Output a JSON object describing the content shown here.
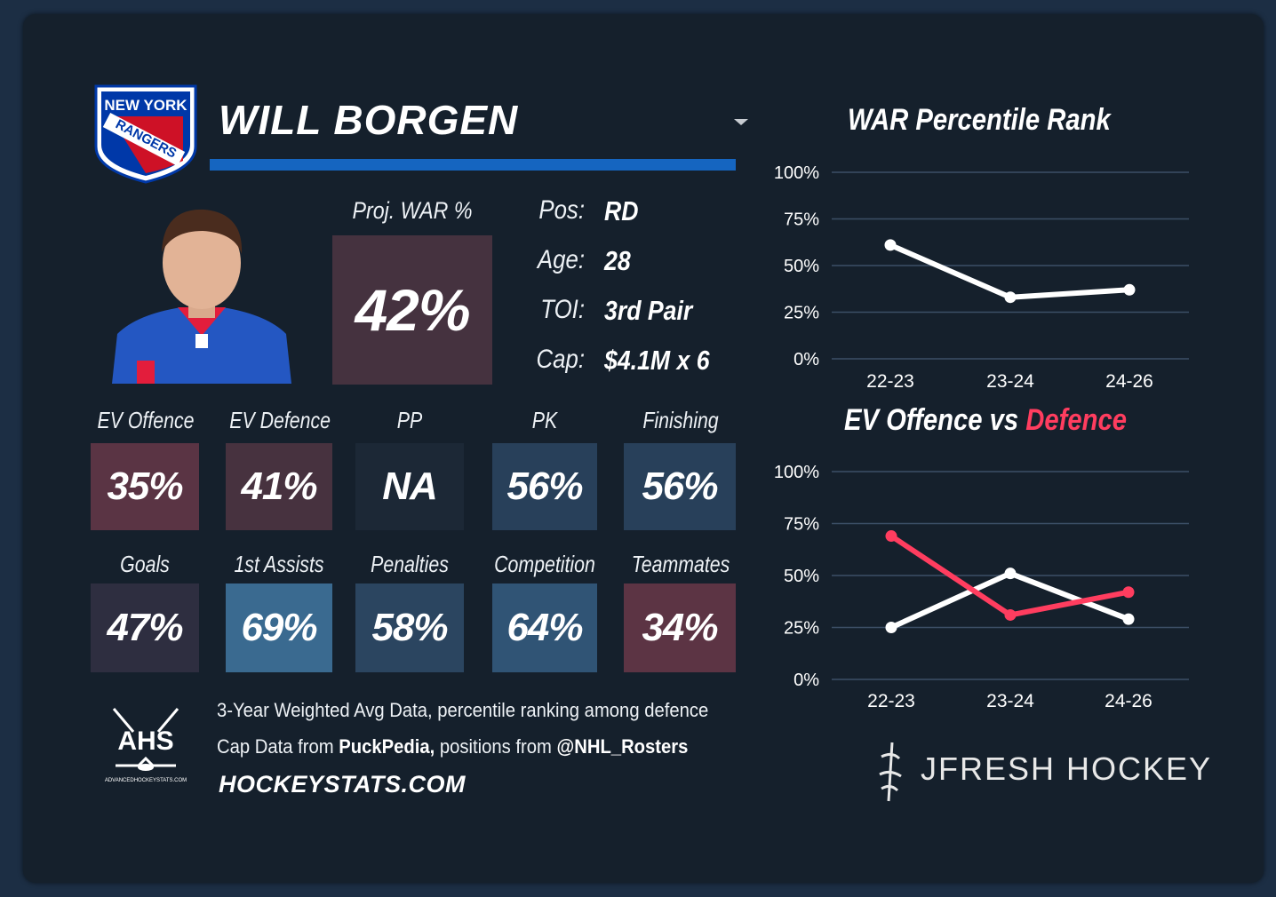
{
  "team": {
    "logo_line1": "NEW YORK",
    "logo_line2": "RANGERS"
  },
  "player": {
    "name": "WILL BORGEN"
  },
  "projected": {
    "label": "Proj. WAR %",
    "value": "42%"
  },
  "info": [
    {
      "key": "Pos:",
      "value": "RD"
    },
    {
      "key": "Age:",
      "value": "28"
    },
    {
      "key": "TOI:",
      "value": "3rd Pair"
    },
    {
      "key": "Cap:",
      "value": "$4.1M x 6"
    }
  ],
  "stats_row1": [
    {
      "label": "EV Offence",
      "value": "35%",
      "color": "#5a3444"
    },
    {
      "label": "EV Defence",
      "value": "41%",
      "color": "#47323f"
    },
    {
      "label": "PP",
      "value": "NA",
      "color": "#1c2836"
    },
    {
      "label": "PK",
      "value": "56%",
      "color": "#28405a"
    },
    {
      "label": "Finishing",
      "value": "56%",
      "color": "#28405a"
    }
  ],
  "stats_row2": [
    {
      "label": "Goals",
      "value": "47%",
      "color": "#2e2e40"
    },
    {
      "label": "1st Assists",
      "value": "69%",
      "color": "#3a6a90"
    },
    {
      "label": "Penalties",
      "value": "58%",
      "color": "#2b4560"
    },
    {
      "label": "Competition",
      "value": "64%",
      "color": "#305475"
    },
    {
      "label": "Teammates",
      "value": "34%",
      "color": "#5c3444"
    }
  ],
  "footer": {
    "line1": "3-Year Weighted Avg Data, percentile ranking among defence",
    "line2_prefix": "Cap Data from ",
    "line2_source1": "PuckPedia,",
    "line2_middle": " positions from ",
    "line2_source2": "@NHL_Rosters",
    "site": "HOCKEYSTATS.COM",
    "ahs_logo": "AHS",
    "ahs_sub": "ADVANCEDHOCKEYSTATS.COM",
    "brand": "JFRESH HOCKEY"
  },
  "chart_titles": {
    "war": "WAR Percentile Rank",
    "ev_part1": "EV Offence",
    "ev_part2": " vs ",
    "ev_part3": "Defence"
  },
  "colors": {
    "offence_line": "#ffffff",
    "defence_line": "#ff3d5f",
    "accent_bar": "#1565c0"
  },
  "chart_data": [
    {
      "type": "line",
      "title": "WAR Percentile Rank",
      "x": [
        "22-23",
        "23-24",
        "24-26"
      ],
      "series": [
        {
          "values": [
            61,
            33,
            37
          ]
        }
      ],
      "yticks": [
        "0%",
        "25%",
        "50%",
        "75%",
        "100%"
      ],
      "ylim": [
        0,
        100
      ],
      "grid": true
    },
    {
      "type": "line",
      "title": "EV Offence vs Defence",
      "x": [
        "22-23",
        "23-24",
        "24-26"
      ],
      "series": [
        {
          "name": "EV Offence",
          "values": [
            25,
            51,
            29
          ]
        },
        {
          "name": "Defence",
          "values": [
            69,
            31,
            42
          ]
        }
      ],
      "yticks": [
        "0%",
        "25%",
        "50%",
        "75%",
        "100%"
      ],
      "ylim": [
        0,
        100
      ],
      "grid": true
    }
  ]
}
